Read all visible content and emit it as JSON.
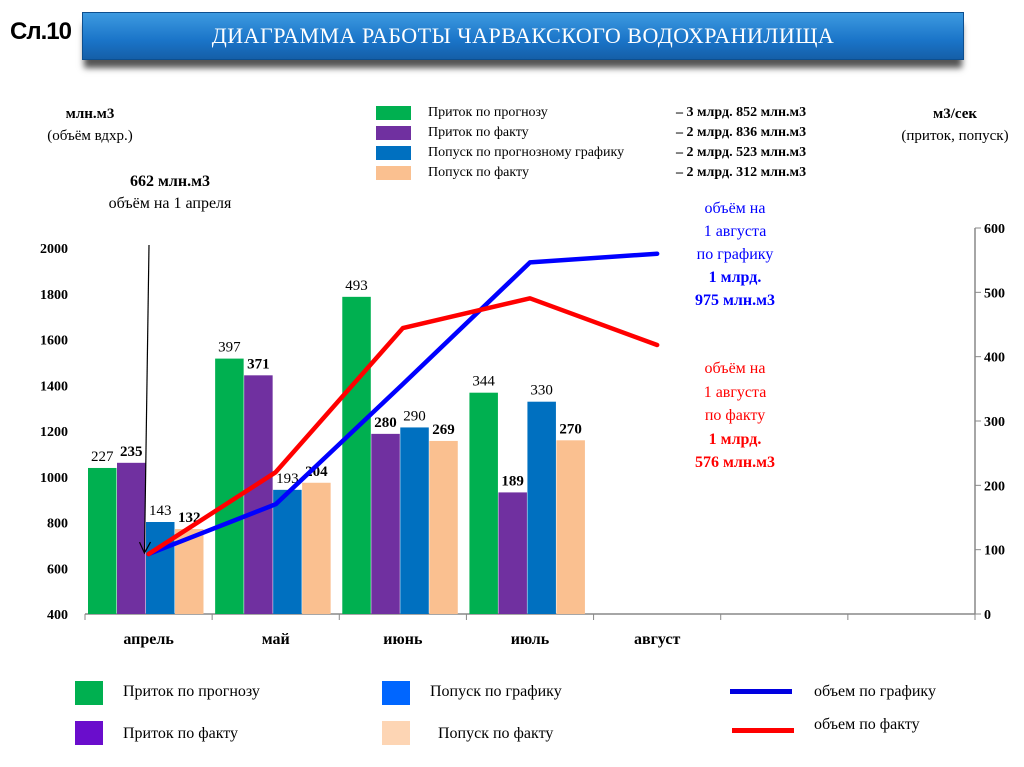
{
  "slide_number": "Сл.10",
  "title": "ДИАГРАММА  РАБОТЫ  ЧАРВАКСКОГО  ВОДОХРАНИЛИЩА",
  "left_axis_title": {
    "unit": "млн.м3",
    "note": "(объём вдхр.)"
  },
  "right_axis_title": {
    "unit": "м3/сек",
    "note": "(приток, попуск)"
  },
  "start_note": {
    "value": "662 млн.м3",
    "label": "объём на 1 апреля"
  },
  "top_legend": [
    {
      "label": "Приток по прогнозу",
      "total": "– 3 млрд.  852 млн.м3",
      "color": "#00b050"
    },
    {
      "label": "Приток по факту",
      "total": "–  2 млрд. 836 млн.м3",
      "color": "#7030a0"
    },
    {
      "label": "Попуск по прогнозному  графику",
      "total": "–  2 млрд.  523 млн.м3",
      "color": "#0070c0"
    },
    {
      "label": "Попуск по факту",
      "total": "–  2 млрд. 312 млн.м3",
      "color": "#fac090"
    }
  ],
  "annotation_plan": {
    "lines": [
      "объём на",
      "1 августа",
      "по графику"
    ],
    "bold": [
      "1 млрд.",
      "975 млн.м3"
    ],
    "color": "#0000ff"
  },
  "annotation_fact": {
    "lines": [
      "объём на",
      "1 августа",
      "по факту"
    ],
    "bold": [
      "1 млрд.",
      "576 млн.м3"
    ],
    "color": "#ff0000"
  },
  "bottom_legend": {
    "inflow_forecast": "Приток по прогнозу",
    "inflow_actual": "Приток по факту",
    "release_plan": "Попуск по графику",
    "release_actual": "Попуск по факту",
    "volume_plan": "объем по графику",
    "volume_actual": "объем по факту"
  },
  "chart_data": {
    "type": "bar+line",
    "categories": [
      "апрель",
      "май",
      "июнь",
      "июль",
      "август",
      "",
      ""
    ],
    "bar_axis": {
      "side": "right",
      "range": [
        0,
        600
      ],
      "ticks": [
        "0",
        "100",
        "200",
        "300",
        "400",
        "500",
        "600"
      ]
    },
    "line_axis": {
      "side": "left",
      "range": [
        400,
        2000
      ],
      "ticks": [
        "400",
        "600",
        "800",
        "1000",
        "1200",
        "1400",
        "1600",
        "1800",
        "2000"
      ]
    },
    "bar_series": [
      {
        "name": "Приток по прогнозу",
        "color": "#00b050",
        "bold": false,
        "values": [
          227,
          397,
          493,
          344
        ]
      },
      {
        "name": "Приток по факту",
        "color": "#7030a0",
        "bold": true,
        "values": [
          235,
          371,
          280,
          189
        ]
      },
      {
        "name": "Попуск по графику",
        "color": "#0070c0",
        "bold": false,
        "values": [
          143,
          193,
          290,
          330
        ]
      },
      {
        "name": "Попуск по факту",
        "color": "#fac090",
        "bold": true,
        "values": [
          132,
          204,
          269,
          270
        ]
      }
    ],
    "line_series": [
      {
        "name": "объем по графику",
        "color": "#0000ff",
        "values": [
          662,
          880,
          1405,
          1937,
          1975
        ]
      },
      {
        "name": "объем по факту",
        "color": "#ff0000",
        "values": [
          662,
          1020,
          1650,
          1780,
          1576
        ]
      }
    ],
    "legend": "bottom",
    "grid": false
  }
}
